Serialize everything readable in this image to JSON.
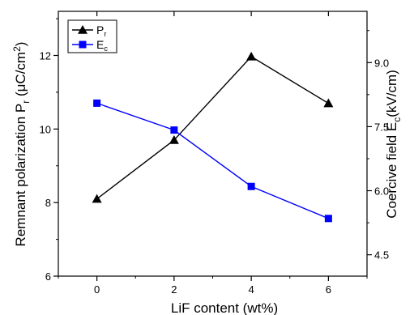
{
  "chart_data": {
    "type": "line",
    "xlabel": "LiF content (wt%)",
    "ylabel_left": {
      "main": "Remnant polarization P",
      "sub": "r",
      "unit_pre": " (μC/cm",
      "unit_sup": "2",
      "unit_post": ")"
    },
    "ylabel_right": {
      "main": "Coercive field E",
      "sub": "c",
      "unit": "(kV/cm)"
    },
    "x": [
      0,
      2,
      4,
      6
    ],
    "xlim": [
      -1,
      7
    ],
    "ylim_left": [
      6,
      13.2
    ],
    "ylim_right": [
      4.0,
      10.2
    ],
    "xticks": [
      "0",
      "2",
      "4",
      "6"
    ],
    "yticks_left": [
      "6",
      "8",
      "10",
      "12"
    ],
    "yticks_right": [
      "4.5",
      "6.0",
      "7.5",
      "9.0"
    ],
    "series": [
      {
        "name": "P",
        "name_sub": "r",
        "axis": "left",
        "marker": "triangle",
        "color": "#000000",
        "values": [
          8.1,
          9.7,
          11.97,
          10.7
        ]
      },
      {
        "name": "E",
        "name_sub": "c",
        "axis": "right",
        "marker": "square",
        "color": "#0000ff",
        "values": [
          8.05,
          7.42,
          6.1,
          5.35
        ]
      }
    ],
    "legend_position": "top-left",
    "grid": false
  }
}
